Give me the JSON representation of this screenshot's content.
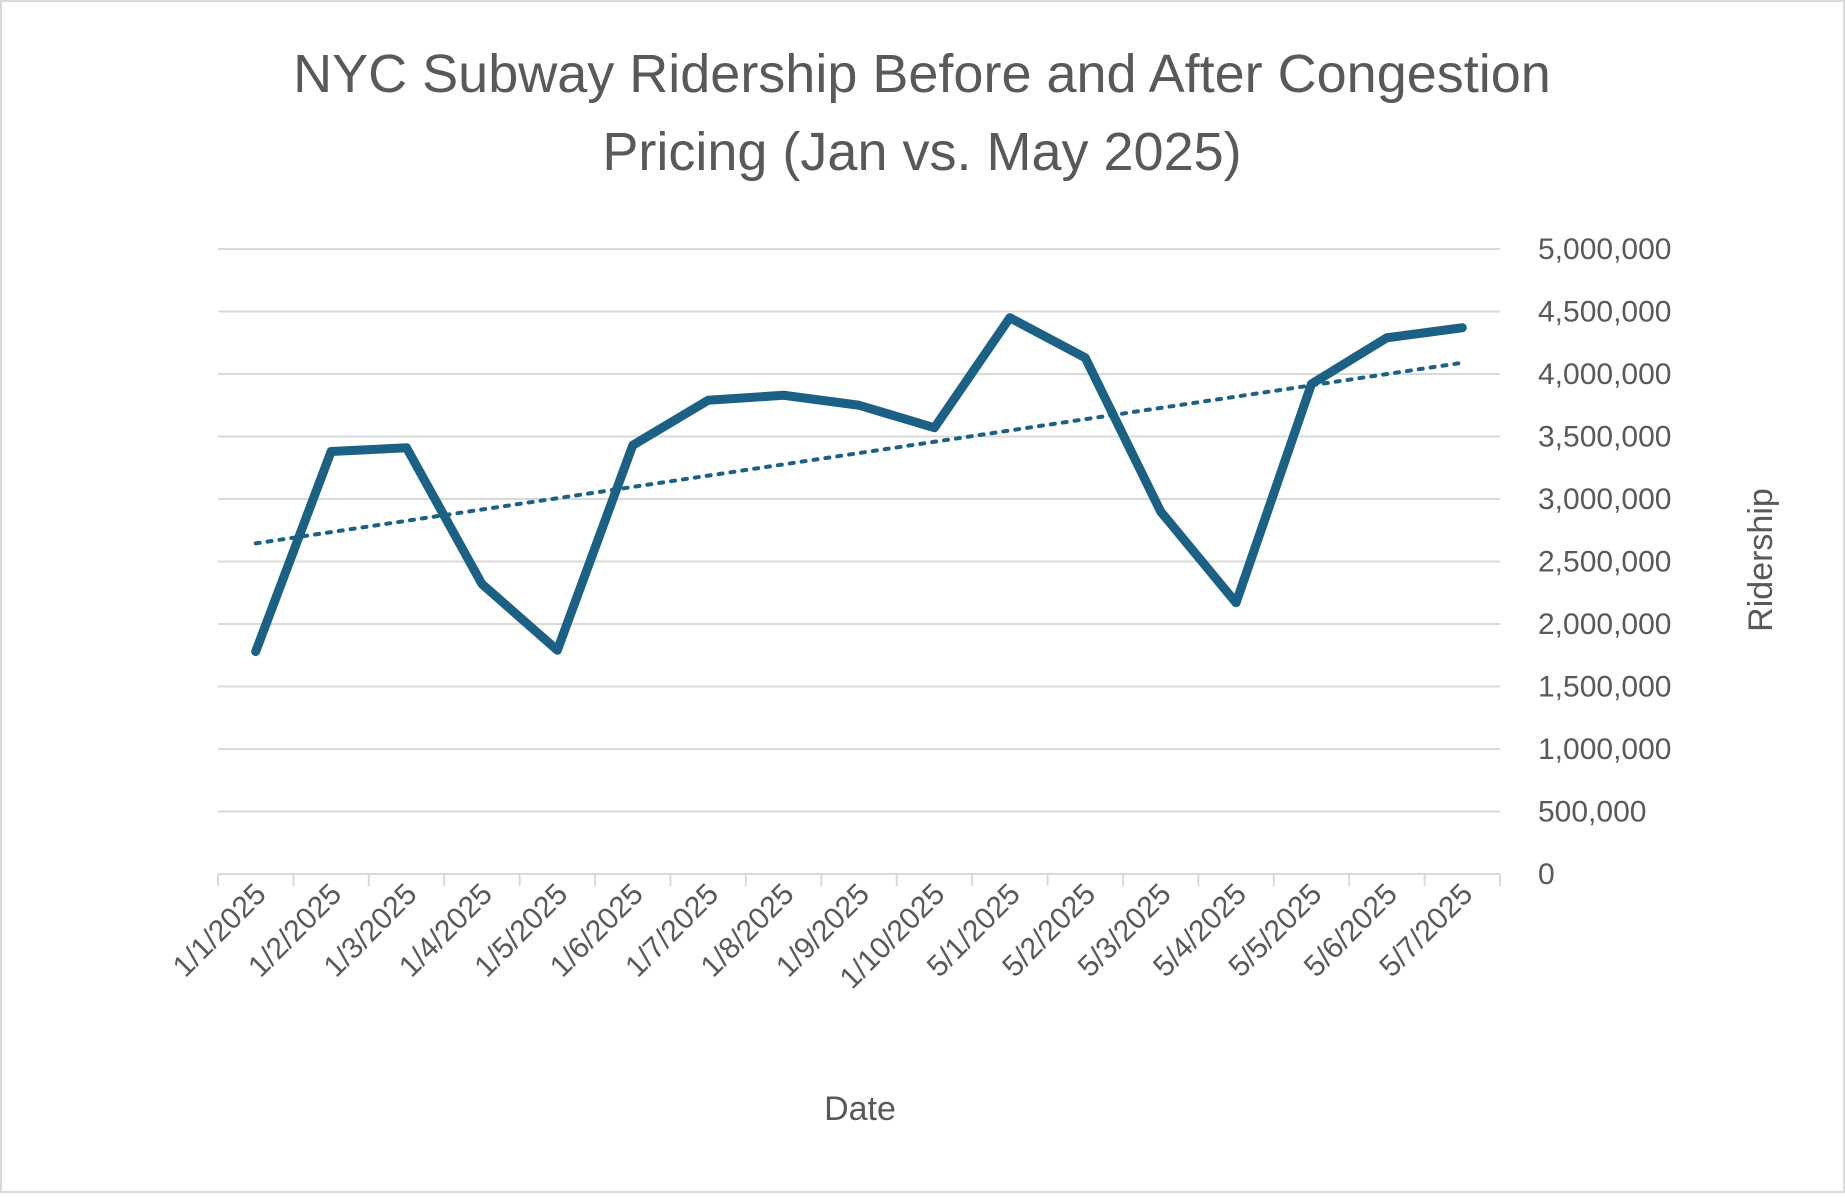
{
  "chart_data": {
    "type": "line",
    "title_lines": [
      "NYC Subway Ridership Before and After Congestion",
      "Pricing (Jan vs. May 2025)"
    ],
    "xlabel": "Date",
    "ylabel": "Ridership",
    "categories": [
      "1/1/2025",
      "1/2/2025",
      "1/3/2025",
      "1/4/2025",
      "1/5/2025",
      "1/6/2025",
      "1/7/2025",
      "1/8/2025",
      "1/9/2025",
      "1/10/2025",
      "5/1/2025",
      "5/2/2025",
      "5/3/2025",
      "5/4/2025",
      "5/5/2025",
      "5/6/2025",
      "5/7/2025"
    ],
    "series": [
      {
        "name": "Ridership",
        "color": "#1b6185",
        "values": [
          1780000,
          3380000,
          3410000,
          2320000,
          1790000,
          3430000,
          3790000,
          3830000,
          3750000,
          3570000,
          4450000,
          4130000,
          2900000,
          2170000,
          3920000,
          4290000,
          4370000
        ]
      }
    ],
    "trendline": {
      "type": "linear",
      "style": "dotted",
      "color": "#1b6185",
      "start": 2645000,
      "end": 4090000
    },
    "yaxis": {
      "min": 0,
      "max": 5000000,
      "step": 500000,
      "position": "right",
      "tick_labels": [
        "0",
        "500,000",
        "1,000,000",
        "1,500,000",
        "2,000,000",
        "2,500,000",
        "3,000,000",
        "3,500,000",
        "4,000,000",
        "4,500,000",
        "5,000,000"
      ]
    },
    "grid": true,
    "legend": "none"
  }
}
